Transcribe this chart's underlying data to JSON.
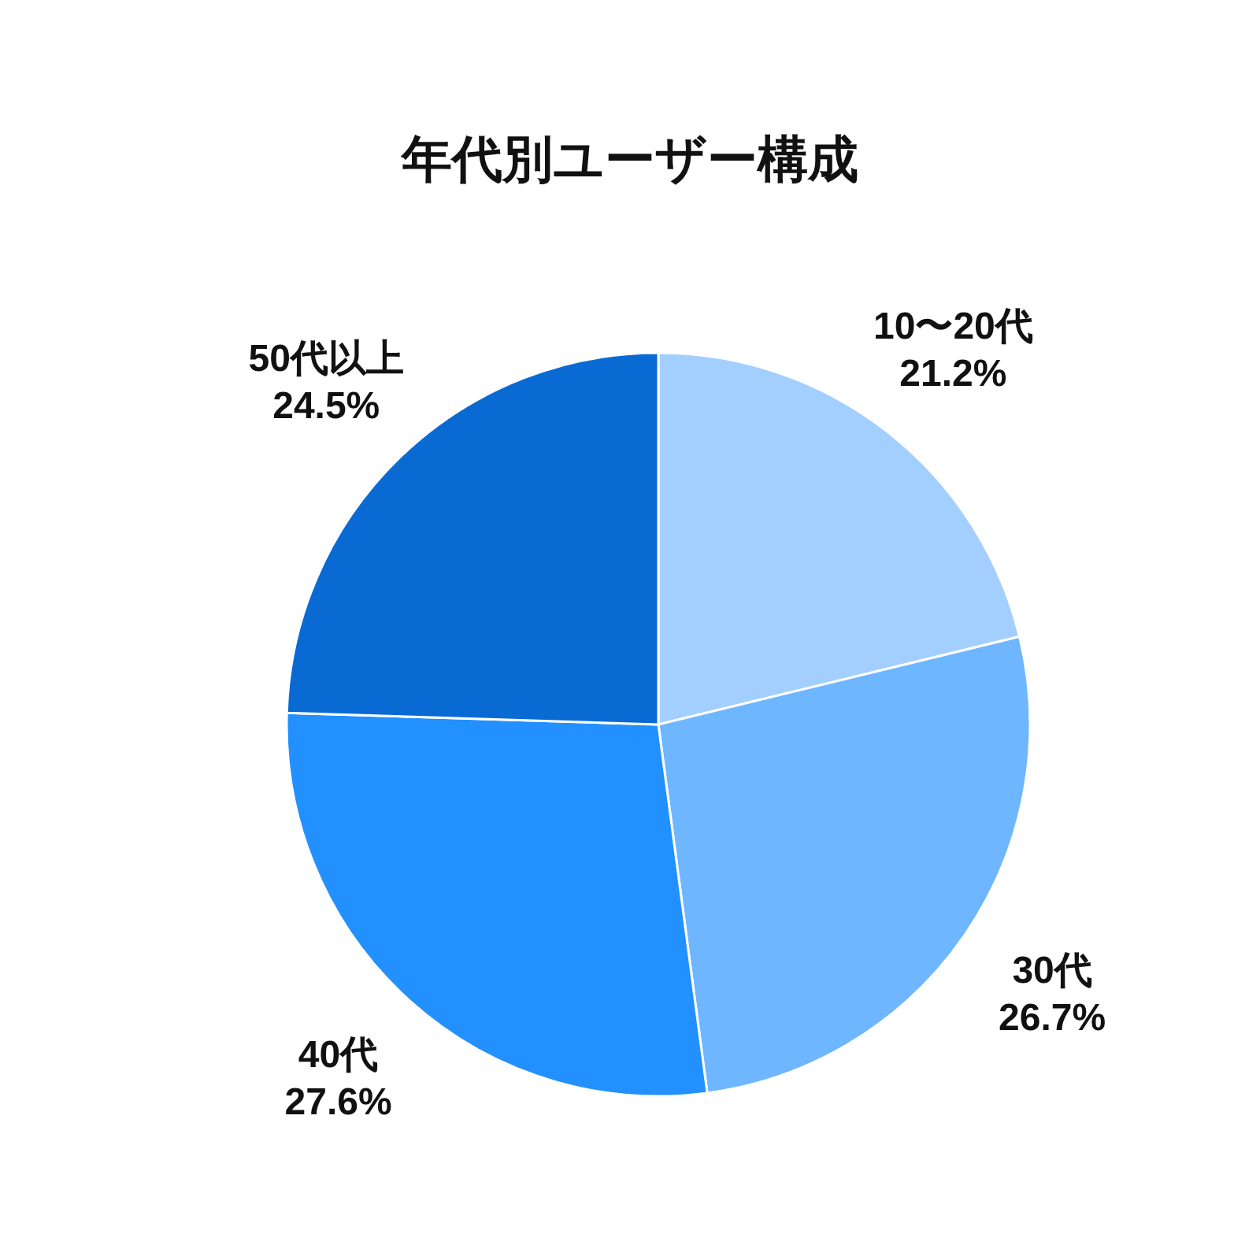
{
  "chart_data": {
    "type": "pie",
    "title": "年代別ユーザー構成",
    "categories": [
      "10〜20代",
      "30代",
      "40代",
      "50代以上"
    ],
    "values": [
      21.2,
      26.7,
      27.6,
      24.5
    ],
    "value_labels": [
      "21.2%",
      "26.7%",
      "27.6%",
      "24.5%"
    ],
    "colors": [
      "#a3cfff",
      "#6eb6ff",
      "#2290ff",
      "#0a6ad4"
    ]
  }
}
